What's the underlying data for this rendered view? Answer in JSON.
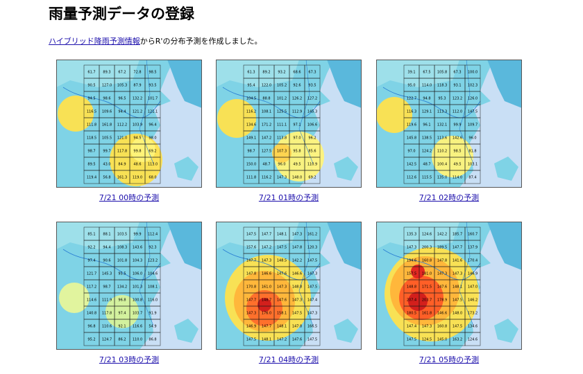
{
  "page": {
    "title": "雨量予測データの登録",
    "intro_link": "ハイブリッド降雨予測情報",
    "intro_text": "からR'の分布予測を作成しました。"
  },
  "maps": [
    {
      "caption": "7/21 00時の予測",
      "values": [
        "61.7",
        "89.3",
        "67.2",
        "72.8",
        "98.5",
        "90.5",
        "127.0",
        "105.3",
        "87.9",
        "93.5",
        "94.5",
        "98.6",
        "96.5",
        "132.2",
        "101.7",
        "116.5",
        "109.6",
        "94.4",
        "121.2",
        "121.1",
        "111.8",
        "161.8",
        "112.2",
        "103.9",
        "96.4",
        "118.5",
        "105.5",
        "121.0",
        "94.5",
        "98.0",
        "98.7",
        "99.7",
        "117.8",
        "99.8",
        "69.2",
        "89.5",
        "43.0",
        "84.9",
        "48.6",
        "113.0",
        "119.4",
        "56.8",
        "161.3",
        "119.0",
        "68.0"
      ]
    },
    {
      "caption": "7/21 01時の予測",
      "values": [
        "61.3",
        "89.2",
        "93.2",
        "68.6",
        "67.3",
        "95.4",
        "122.0",
        "105.2",
        "92.6",
        "93.5",
        "104.5",
        "88.8",
        "101.2",
        "126.2",
        "127.2",
        "116.2",
        "108.1",
        "125.5",
        "112.9",
        "145.3",
        "134.6",
        "171.2",
        "111.1",
        "97.1",
        "106.6",
        "149.1",
        "147.2",
        "113.8",
        "97.0",
        "96.2",
        "98.7",
        "127.5",
        "107.3",
        "95.8",
        "85.6",
        "150.0",
        "48.7",
        "96.0",
        "49.5",
        "110.9",
        "111.8",
        "116.2",
        "147.3",
        "148.0",
        "69.2"
      ]
    },
    {
      "caption": "7/21 02時の予測",
      "values": [
        "39.1",
        "67.5",
        "105.8",
        "67.3",
        "100.0",
        "95.0",
        "114.0",
        "118.3",
        "93.1",
        "102.3",
        "122.7",
        "94.8",
        "95.3",
        "123.2",
        "126.0",
        "116.3",
        "129.1",
        "113.3",
        "112.0",
        "147.5",
        "119.6",
        "96.1",
        "132.1",
        "99.9",
        "109.7",
        "145.8",
        "138.5",
        "113.6",
        "142.6",
        "96.0",
        "97.0",
        "124.2",
        "110.2",
        "98.5",
        "81.8",
        "142.5",
        "48.7",
        "100.4",
        "49.5",
        "103.1",
        "112.6",
        "115.5",
        "135.0",
        "114.0",
        "87.4"
      ]
    },
    {
      "caption": "7/21 03時の予測",
      "values": [
        "85.1",
        "88.1",
        "103.5",
        "99.9",
        "112.4",
        "92.2",
        "94.4",
        "108.3",
        "143.6",
        "92.3",
        "97.4",
        "90.6",
        "101.8",
        "104.3",
        "123.2",
        "121.7",
        "145.3",
        "95.5",
        "106.0",
        "104.6",
        "117.2",
        "98.7",
        "134.2",
        "101.3",
        "108.1",
        "114.6",
        "111.9",
        "96.8",
        "100.8",
        "116.0",
        "140.8",
        "117.8",
        "97.4",
        "103.7",
        "91.9",
        "96.8",
        "110.6",
        "92.1",
        "116.6",
        "54.9",
        "95.2",
        "124.7",
        "86.2",
        "110.0",
        "86.8"
      ]
    },
    {
      "caption": "7/21 04時の予測",
      "values": [
        "147.5",
        "147.7",
        "148.1",
        "147.3",
        "161.2",
        "157.6",
        "147.2",
        "147.5",
        "147.8",
        "120.3",
        "147.7",
        "147.3",
        "148.5",
        "142.2",
        "147.5",
        "147.8",
        "146.6",
        "147.6",
        "146.6",
        "147.3",
        "170.8",
        "161.0",
        "147.3",
        "148.8",
        "147.5",
        "147.7",
        "148.7",
        "147.6",
        "147.3",
        "147.4",
        "147.3",
        "176.0",
        "158.1",
        "147.5",
        "147.3",
        "146.9",
        "147.7",
        "148.1",
        "147.8",
        "166.5",
        "147.5",
        "148.1",
        "147.2",
        "147.6",
        "147.5"
      ]
    },
    {
      "caption": "7/21 05時の予測",
      "values": [
        "135.3",
        "124.6",
        "142.2",
        "185.7",
        "160.7",
        "147.3",
        "200.3",
        "189.5",
        "147.7",
        "137.9",
        "194.6",
        "160.8",
        "147.8",
        "141.6",
        "170.4",
        "157.5",
        "181.0",
        "147.3",
        "147.3",
        "146.9",
        "148.8",
        "171.5",
        "147.6",
        "148.1",
        "147.0",
        "207.4",
        "203.7",
        "178.9",
        "147.5",
        "146.2",
        "180.5",
        "161.8",
        "146.6",
        "148.0",
        "173.2",
        "147.4",
        "147.3",
        "160.8",
        "147.5",
        "134.6",
        "147.5",
        "124.5",
        "145.0",
        "163.2",
        "124.6"
      ]
    }
  ]
}
